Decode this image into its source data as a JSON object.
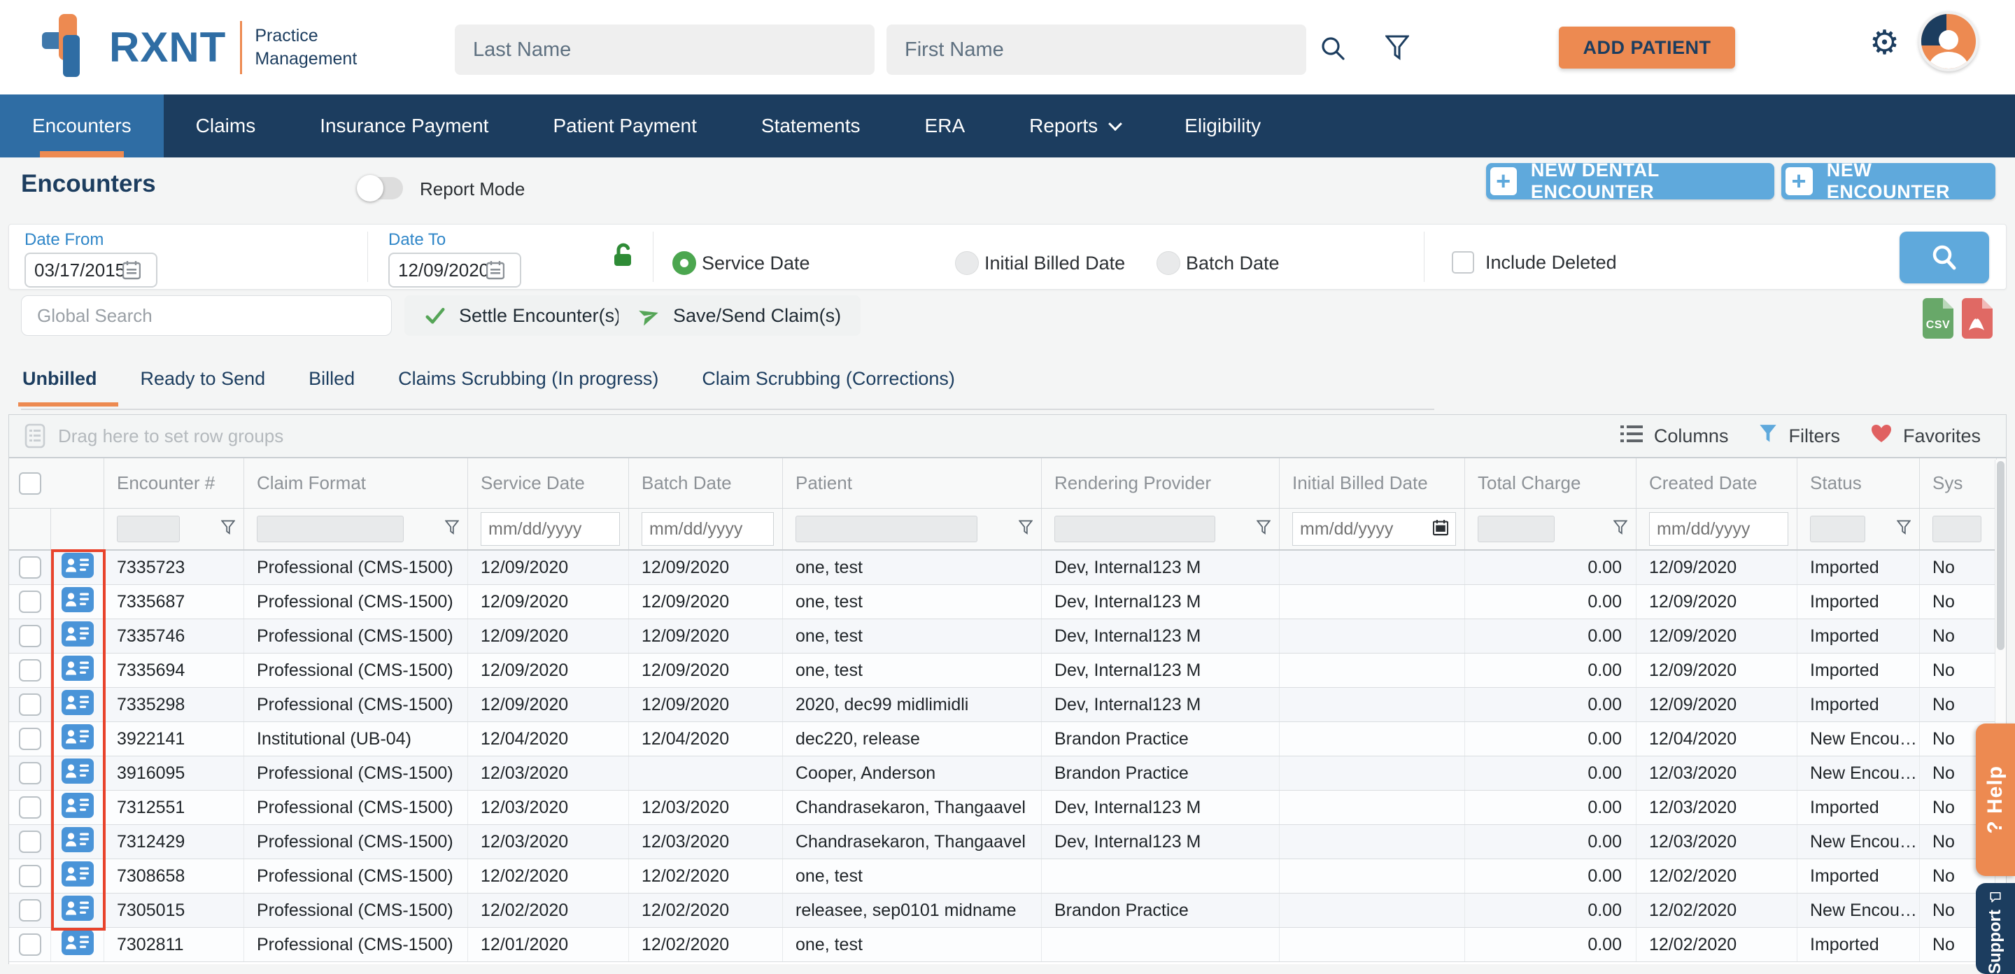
{
  "colors": {
    "navy": "#1C3D5F",
    "nav_active_blue": "#2F6DA4",
    "orange": "#ED8A51",
    "button_blue": "#5FA9DC",
    "link_blue": "#2F86C8",
    "green": "#4BA64F",
    "highlight_red": "#E8432C",
    "csv_green": "#68A869",
    "pdf_red": "#E06964"
  },
  "header": {
    "logo_text": "RXNT",
    "product_line1": "Practice",
    "product_line2": "Management",
    "last_name_placeholder": "Last Name",
    "first_name_placeholder": "First Name",
    "add_patient_label": "ADD PATIENT"
  },
  "nav": {
    "items": [
      {
        "label": "Encounters",
        "active": true,
        "dropdown": false
      },
      {
        "label": "Claims",
        "active": false,
        "dropdown": false
      },
      {
        "label": "Insurance Payment",
        "active": false,
        "dropdown": false
      },
      {
        "label": "Patient Payment",
        "active": false,
        "dropdown": false
      },
      {
        "label": "Statements",
        "active": false,
        "dropdown": false
      },
      {
        "label": "ERA",
        "active": false,
        "dropdown": false
      },
      {
        "label": "Reports",
        "active": false,
        "dropdown": true
      },
      {
        "label": "Eligibility",
        "active": false,
        "dropdown": false
      }
    ]
  },
  "page": {
    "title": "Encounters",
    "report_mode_label": "Report Mode",
    "new_dental_label": "NEW DENTAL ENCOUNTER",
    "new_encounter_label": "NEW ENCOUNTER",
    "plus_glyph": "+"
  },
  "filters": {
    "date_from_label": "Date From",
    "date_from_value": "03/17/2015",
    "date_to_label": "Date To",
    "date_to_value": "12/09/2020",
    "radios": [
      {
        "label": "Service Date",
        "selected": true
      },
      {
        "label": "Initial Billed Date",
        "selected": false
      },
      {
        "label": "Batch Date",
        "selected": false
      }
    ],
    "include_deleted_label": "Include Deleted"
  },
  "actions": {
    "global_search_placeholder": "Global Search",
    "settle_label": "Settle Encounter(s)",
    "save_send_label": "Save/Send Claim(s)"
  },
  "tabs": [
    {
      "label": "Unbilled",
      "active": true
    },
    {
      "label": "Ready to Send",
      "active": false
    },
    {
      "label": "Billed",
      "active": false
    },
    {
      "label": "Claims Scrubbing (In progress)",
      "active": false
    },
    {
      "label": "Claim Scrubbing (Corrections)",
      "active": false
    }
  ],
  "grid": {
    "group_hint": "Drag here to set row groups",
    "toolbar": [
      {
        "label": "Columns",
        "icon": "columns-list-icon"
      },
      {
        "label": "Filters",
        "icon": "filter-funnel-icon"
      },
      {
        "label": "Favorites",
        "icon": "heart-icon"
      }
    ],
    "columns": [
      "Encounter #",
      "Claim Format",
      "Service Date",
      "Batch Date",
      "Patient",
      "Rendering Provider",
      "Initial Billed Date",
      "Total Charge",
      "Created Date",
      "Status",
      "Sys"
    ],
    "date_placeholder": "mm/dd/yyyy",
    "rows": [
      {
        "encounter": "7335723",
        "claim_format": "Professional (CMS-1500)",
        "service_date": "12/09/2020",
        "batch_date": "12/09/2020",
        "patient": "one, test",
        "provider": "Dev, Internal123 M",
        "initial_billed": "",
        "total_charge": "0.00",
        "created": "12/09/2020",
        "status": "Imported",
        "sys": "No"
      },
      {
        "encounter": "7335687",
        "claim_format": "Professional (CMS-1500)",
        "service_date": "12/09/2020",
        "batch_date": "12/09/2020",
        "patient": "one, test",
        "provider": "Dev, Internal123 M",
        "initial_billed": "",
        "total_charge": "0.00",
        "created": "12/09/2020",
        "status": "Imported",
        "sys": "No"
      },
      {
        "encounter": "7335746",
        "claim_format": "Professional (CMS-1500)",
        "service_date": "12/09/2020",
        "batch_date": "12/09/2020",
        "patient": "one, test",
        "provider": "Dev, Internal123 M",
        "initial_billed": "",
        "total_charge": "0.00",
        "created": "12/09/2020",
        "status": "Imported",
        "sys": "No"
      },
      {
        "encounter": "7335694",
        "claim_format": "Professional (CMS-1500)",
        "service_date": "12/09/2020",
        "batch_date": "12/09/2020",
        "patient": "one, test",
        "provider": "Dev, Internal123 M",
        "initial_billed": "",
        "total_charge": "0.00",
        "created": "12/09/2020",
        "status": "Imported",
        "sys": "No"
      },
      {
        "encounter": "7335298",
        "claim_format": "Professional (CMS-1500)",
        "service_date": "12/09/2020",
        "batch_date": "12/09/2020",
        "patient": "2020, dec99 midlimidli",
        "provider": "Dev, Internal123 M",
        "initial_billed": "",
        "total_charge": "0.00",
        "created": "12/09/2020",
        "status": "Imported",
        "sys": "No"
      },
      {
        "encounter": "3922141",
        "claim_format": "Institutional (UB-04)",
        "service_date": "12/04/2020",
        "batch_date": "12/04/2020",
        "patient": "dec220, release",
        "provider": "Brandon Practice",
        "initial_billed": "",
        "total_charge": "0.00",
        "created": "12/04/2020",
        "status": "New Encou…",
        "sys": "No"
      },
      {
        "encounter": "3916095",
        "claim_format": "Professional (CMS-1500)",
        "service_date": "12/03/2020",
        "batch_date": "",
        "patient": "Cooper, Anderson",
        "provider": "Brandon Practice",
        "initial_billed": "",
        "total_charge": "0.00",
        "created": "12/03/2020",
        "status": "New Encou…",
        "sys": "No"
      },
      {
        "encounter": "7312551",
        "claim_format": "Professional (CMS-1500)",
        "service_date": "12/03/2020",
        "batch_date": "12/03/2020",
        "patient": "Chandrasekaron, Thangaavel",
        "provider": "Dev, Internal123 M",
        "initial_billed": "",
        "total_charge": "0.00",
        "created": "12/03/2020",
        "status": "Imported",
        "sys": "No"
      },
      {
        "encounter": "7312429",
        "claim_format": "Professional (CMS-1500)",
        "service_date": "12/03/2020",
        "batch_date": "12/03/2020",
        "patient": "Chandrasekaron, Thangaavel",
        "provider": "Dev, Internal123 M",
        "initial_billed": "",
        "total_charge": "0.00",
        "created": "12/03/2020",
        "status": "New Encou…",
        "sys": "No"
      },
      {
        "encounter": "7308658",
        "claim_format": "Professional (CMS-1500)",
        "service_date": "12/02/2020",
        "batch_date": "12/02/2020",
        "patient": "one, test",
        "provider": "",
        "initial_billed": "",
        "total_charge": "0.00",
        "created": "12/02/2020",
        "status": "Imported",
        "sys": "No"
      },
      {
        "encounter": "7305015",
        "claim_format": "Professional (CMS-1500)",
        "service_date": "12/02/2020",
        "batch_date": "12/02/2020",
        "patient": "releasee, sep0101 midname",
        "provider": "Brandon Practice",
        "initial_billed": "",
        "total_charge": "0.00",
        "created": "12/02/2020",
        "status": "New Encou…",
        "sys": "No"
      },
      {
        "encounter": "7302811",
        "claim_format": "Professional (CMS-1500)",
        "service_date": "12/01/2020",
        "batch_date": "12/02/2020",
        "patient": "one, test",
        "provider": "",
        "initial_billed": "",
        "total_charge": "0.00",
        "created": "12/02/2020",
        "status": "Imported",
        "sys": "No"
      }
    ],
    "red_highlight_row_count": 11
  },
  "side": {
    "help_label": "? Help",
    "support_label": "Support"
  }
}
